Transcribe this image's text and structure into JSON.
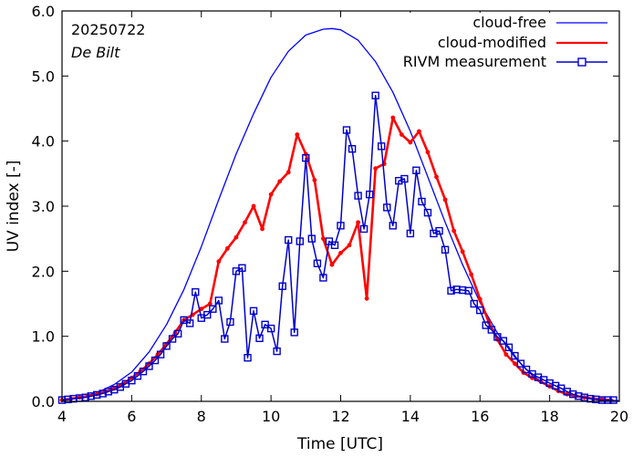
{
  "chart_data": {
    "type": "line",
    "title": "",
    "xlabel": "Time  [UTC]",
    "ylabel": "UV index  [-]",
    "xlim": [
      4,
      20
    ],
    "ylim": [
      0.0,
      6.0
    ],
    "x_ticks": [
      4,
      6,
      8,
      10,
      12,
      14,
      16,
      18,
      20
    ],
    "y_ticks": [
      0.0,
      1.0,
      2.0,
      3.0,
      4.0,
      5.0,
      6.0
    ],
    "y_tick_labels": [
      "0.0",
      "1.0",
      "2.0",
      "3.0",
      "4.0",
      "5.0",
      "6.0"
    ],
    "legend_position": "top-right",
    "annotations": {
      "date": "20250722",
      "station": "De Bilt"
    },
    "series": [
      {
        "name": "cloud-free",
        "style": "line",
        "color": "#0000ff",
        "x": [
          4.0,
          4.5,
          5.0,
          5.5,
          6.0,
          6.5,
          7.0,
          7.5,
          8.0,
          8.5,
          9.0,
          9.5,
          10.0,
          10.5,
          11.0,
          11.5,
          11.75,
          12.0,
          12.5,
          13.0,
          13.5,
          14.0,
          14.5,
          15.0,
          15.5,
          16.0,
          16.5,
          17.0,
          17.5,
          18.0,
          18.5,
          19.0,
          19.5,
          20.0
        ],
        "y": [
          0.02,
          0.06,
          0.13,
          0.26,
          0.45,
          0.76,
          1.18,
          1.72,
          2.38,
          3.1,
          3.8,
          4.42,
          4.98,
          5.38,
          5.63,
          5.72,
          5.73,
          5.71,
          5.55,
          5.22,
          4.75,
          4.15,
          3.45,
          2.75,
          2.1,
          1.52,
          1.05,
          0.68,
          0.4,
          0.22,
          0.11,
          0.05,
          0.02,
          0.01
        ]
      },
      {
        "name": "cloud-modified",
        "style": "line-dots",
        "color": "#ff0000",
        "x": [
          4.0,
          4.25,
          4.5,
          4.75,
          5.0,
          5.25,
          5.5,
          5.75,
          6.0,
          6.25,
          6.5,
          6.75,
          7.0,
          7.25,
          7.5,
          7.75,
          8.0,
          8.25,
          8.5,
          8.75,
          9.0,
          9.25,
          9.5,
          9.75,
          10.0,
          10.25,
          10.5,
          10.75,
          11.0,
          11.25,
          11.5,
          11.75,
          12.0,
          12.25,
          12.5,
          12.75,
          13.0,
          13.25,
          13.5,
          13.75,
          14.0,
          14.25,
          14.5,
          14.75,
          15.0,
          15.25,
          15.5,
          15.75,
          16.0,
          16.25,
          16.5,
          16.75,
          17.0,
          17.25,
          17.5,
          17.75,
          18.0,
          18.25,
          18.5,
          18.75,
          19.0,
          19.25,
          19.5,
          19.75
        ],
        "y": [
          0.02,
          0.04,
          0.06,
          0.08,
          0.11,
          0.15,
          0.2,
          0.27,
          0.36,
          0.46,
          0.58,
          0.72,
          0.88,
          1.06,
          1.25,
          1.33,
          1.42,
          1.5,
          2.15,
          2.35,
          2.52,
          2.75,
          3.0,
          2.65,
          3.18,
          3.38,
          3.52,
          4.1,
          3.8,
          3.4,
          2.5,
          2.1,
          2.28,
          2.4,
          2.75,
          1.58,
          3.58,
          3.65,
          4.36,
          4.1,
          3.98,
          4.15,
          3.83,
          3.45,
          3.1,
          2.62,
          2.3,
          1.95,
          1.57,
          1.22,
          0.95,
          0.72,
          0.58,
          0.44,
          0.36,
          0.3,
          0.23,
          0.16,
          0.11,
          0.08,
          0.06,
          0.04,
          0.03,
          0.02
        ]
      },
      {
        "name": "RIVM measurement",
        "style": "line-squares",
        "color": "#0000cc",
        "x": [
          4.0,
          4.17,
          4.33,
          4.5,
          4.67,
          4.83,
          5.0,
          5.17,
          5.33,
          5.5,
          5.67,
          5.83,
          6.0,
          6.17,
          6.33,
          6.5,
          6.67,
          6.83,
          7.0,
          7.17,
          7.33,
          7.5,
          7.67,
          7.83,
          8.0,
          8.17,
          8.33,
          8.5,
          8.67,
          8.83,
          9.0,
          9.17,
          9.33,
          9.5,
          9.67,
          9.83,
          10.0,
          10.17,
          10.33,
          10.5,
          10.67,
          10.83,
          11.0,
          11.17,
          11.33,
          11.5,
          11.67,
          11.83,
          12.0,
          12.17,
          12.33,
          12.5,
          12.67,
          12.83,
          13.0,
          13.17,
          13.33,
          13.5,
          13.67,
          13.83,
          14.0,
          14.17,
          14.33,
          14.5,
          14.67,
          14.83,
          15.0,
          15.17,
          15.33,
          15.5,
          15.67,
          15.83,
          16.0,
          16.17,
          16.33,
          16.5,
          16.67,
          16.83,
          17.0,
          17.17,
          17.33,
          17.5,
          17.67,
          17.83,
          18.0,
          18.17,
          18.33,
          18.5,
          18.67,
          18.83,
          19.0,
          19.17,
          19.33,
          19.5,
          19.67,
          19.83
        ],
        "y": [
          0.02,
          0.03,
          0.04,
          0.05,
          0.06,
          0.08,
          0.1,
          0.12,
          0.15,
          0.18,
          0.22,
          0.27,
          0.32,
          0.39,
          0.46,
          0.54,
          0.63,
          0.72,
          0.85,
          0.96,
          1.04,
          1.25,
          1.2,
          1.68,
          1.28,
          1.33,
          1.42,
          1.55,
          0.96,
          1.22,
          2.0,
          2.05,
          0.67,
          1.39,
          0.97,
          1.18,
          1.12,
          0.77,
          1.77,
          2.48,
          1.06,
          2.46,
          3.74,
          2.5,
          2.12,
          1.9,
          2.46,
          2.4,
          2.7,
          4.17,
          3.88,
          3.16,
          2.65,
          3.18,
          4.7,
          3.92,
          2.98,
          2.7,
          3.39,
          3.42,
          2.58,
          3.55,
          3.07,
          2.9,
          2.58,
          2.62,
          2.33,
          1.7,
          1.72,
          1.71,
          1.7,
          1.5,
          1.4,
          1.17,
          1.1,
          0.99,
          0.93,
          0.83,
          0.7,
          0.58,
          0.49,
          0.42,
          0.37,
          0.33,
          0.28,
          0.24,
          0.2,
          0.15,
          0.11,
          0.08,
          0.06,
          0.04,
          0.03,
          0.02,
          0.02,
          0.02
        ]
      }
    ]
  }
}
